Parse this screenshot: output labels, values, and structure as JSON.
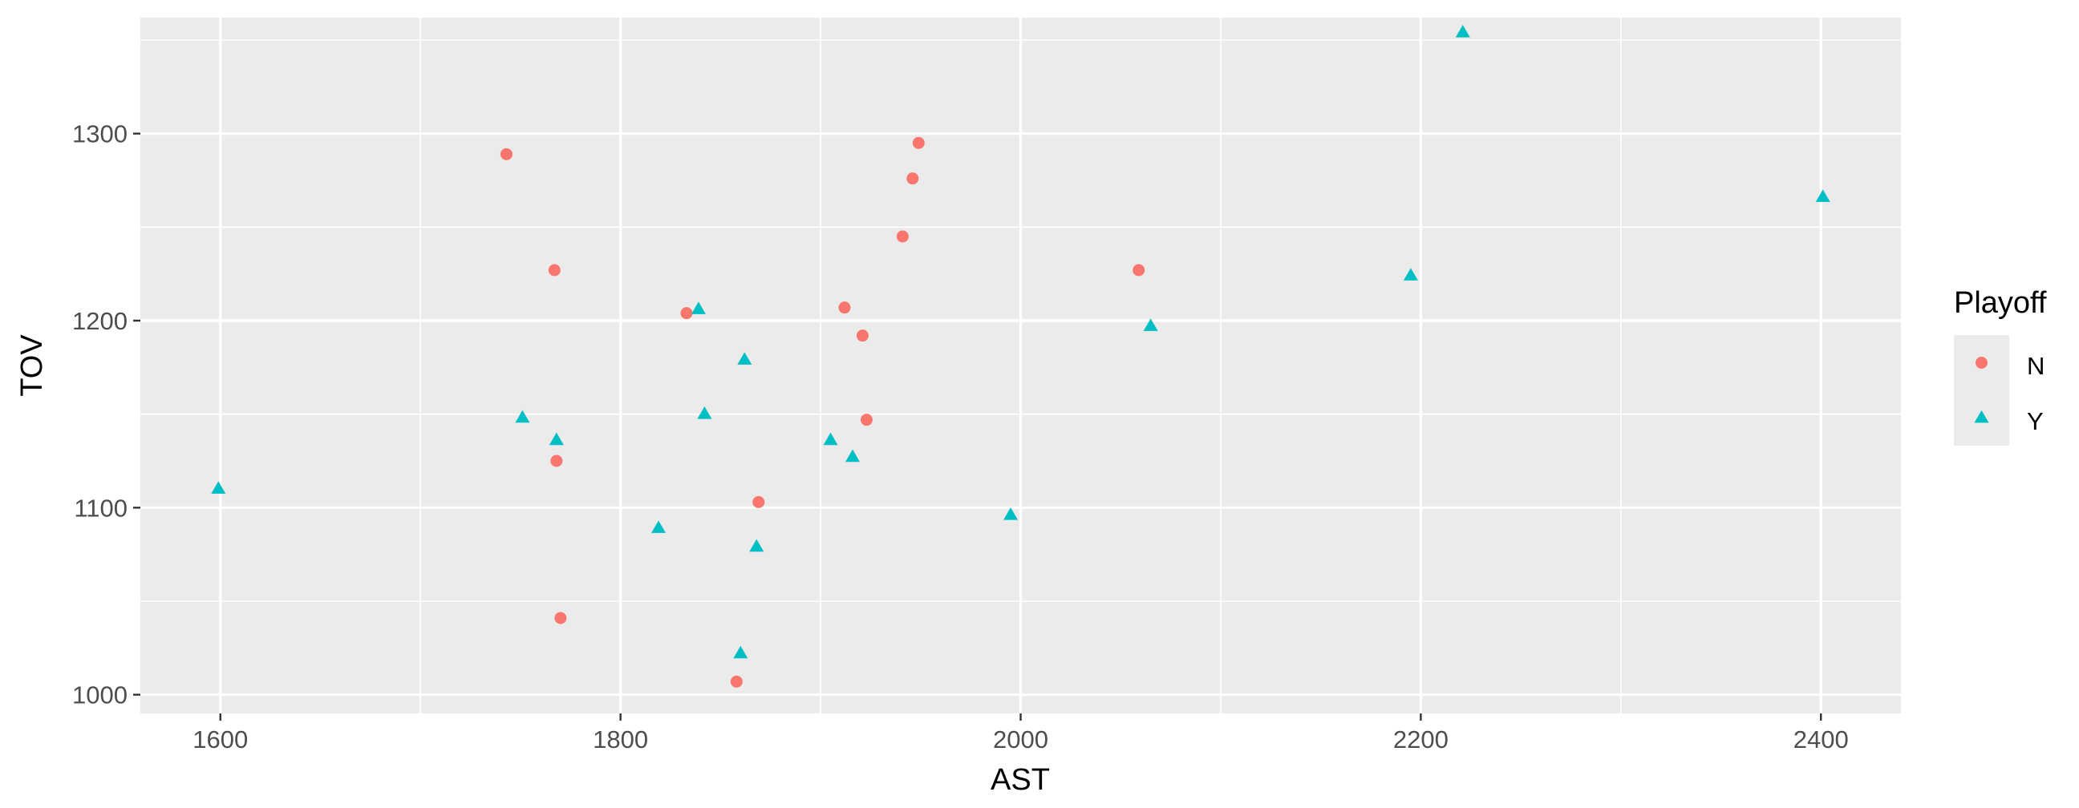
{
  "chart_data": {
    "type": "scatter",
    "title": "",
    "xlabel": "AST",
    "ylabel": "TOV",
    "xlim": [
      1560,
      2440
    ],
    "ylim": [
      990,
      1362
    ],
    "x_ticks": [
      1600,
      1800,
      2000,
      2200,
      2400
    ],
    "y_ticks": [
      1000,
      1100,
      1200,
      1300
    ],
    "x_tick_labels": [
      "1600",
      "1800",
      "2000",
      "2200",
      "2400"
    ],
    "y_tick_labels": [
      "1000",
      "1100",
      "1200",
      "1300"
    ],
    "grid": true,
    "legend": {
      "title": "Playoff",
      "placement": "right",
      "entries": [
        {
          "label": "N",
          "shape": "circle",
          "color": "#F8766D"
        },
        {
          "label": "Y",
          "shape": "triangle",
          "color": "#00BFC4"
        }
      ]
    },
    "series": [
      {
        "name": "N",
        "shape": "circle",
        "color": "#F8766D",
        "points": [
          {
            "x": 1743,
            "y": 1289
          },
          {
            "x": 1767,
            "y": 1227
          },
          {
            "x": 1768,
            "y": 1125
          },
          {
            "x": 1770,
            "y": 1041
          },
          {
            "x": 1833,
            "y": 1204
          },
          {
            "x": 1858,
            "y": 1007
          },
          {
            "x": 1869,
            "y": 1103
          },
          {
            "x": 1912,
            "y": 1207
          },
          {
            "x": 1921,
            "y": 1192
          },
          {
            "x": 1923,
            "y": 1147
          },
          {
            "x": 1941,
            "y": 1245
          },
          {
            "x": 1946,
            "y": 1276
          },
          {
            "x": 1949,
            "y": 1295
          },
          {
            "x": 2059,
            "y": 1227
          }
        ]
      },
      {
        "name": "Y",
        "shape": "triangle",
        "color": "#00BFC4",
        "points": [
          {
            "x": 1599,
            "y": 1110
          },
          {
            "x": 1751,
            "y": 1148
          },
          {
            "x": 1768,
            "y": 1136
          },
          {
            "x": 1819,
            "y": 1089
          },
          {
            "x": 1839,
            "y": 1206
          },
          {
            "x": 1842,
            "y": 1150
          },
          {
            "x": 1860,
            "y": 1022
          },
          {
            "x": 1862,
            "y": 1179
          },
          {
            "x": 1868,
            "y": 1079
          },
          {
            "x": 1905,
            "y": 1136
          },
          {
            "x": 1916,
            "y": 1127
          },
          {
            "x": 1995,
            "y": 1096
          },
          {
            "x": 2065,
            "y": 1197
          },
          {
            "x": 2195,
            "y": 1224
          },
          {
            "x": 2221,
            "y": 1354
          },
          {
            "x": 2401,
            "y": 1266
          }
        ]
      }
    ]
  }
}
